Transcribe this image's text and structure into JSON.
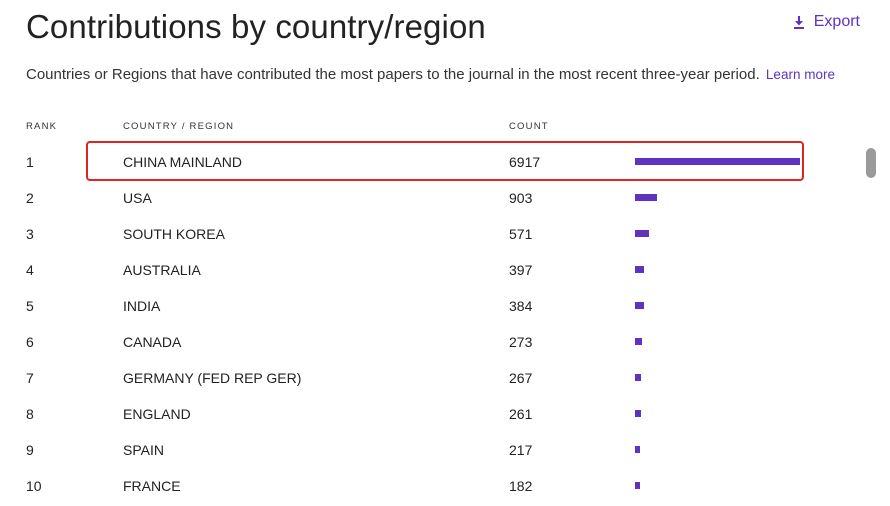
{
  "header": {
    "title": "Contributions by country/region",
    "export_label": "Export",
    "description": "Countries or Regions that have contributed the most papers to the journal in the most recent three-year period.",
    "learn_more": "Learn more"
  },
  "table": {
    "columns": {
      "rank": "RANK",
      "country": "COUNTRY / REGION",
      "count": "COUNT"
    },
    "rows": [
      {
        "rank": "1",
        "country": "CHINA MAINLAND",
        "count": "6917",
        "value": 6917
      },
      {
        "rank": "2",
        "country": "USA",
        "count": "903",
        "value": 903
      },
      {
        "rank": "3",
        "country": "SOUTH KOREA",
        "count": "571",
        "value": 571
      },
      {
        "rank": "4",
        "country": "AUSTRALIA",
        "count": "397",
        "value": 397
      },
      {
        "rank": "5",
        "country": "INDIA",
        "count": "384",
        "value": 384
      },
      {
        "rank": "6",
        "country": "CANADA",
        "count": "273",
        "value": 273
      },
      {
        "rank": "7",
        "country": "GERMANY (FED REP GER)",
        "count": "267",
        "value": 267
      },
      {
        "rank": "8",
        "country": "ENGLAND",
        "count": "261",
        "value": 261
      },
      {
        "rank": "9",
        "country": "SPAIN",
        "count": "217",
        "value": 217
      },
      {
        "rank": "10",
        "country": "FRANCE",
        "count": "182",
        "value": 182
      }
    ],
    "highlighted_row_index": 0
  },
  "colors": {
    "accent": "#5e33bf",
    "highlight_border": "#e02424"
  },
  "icons": {
    "export": "download-icon"
  }
}
